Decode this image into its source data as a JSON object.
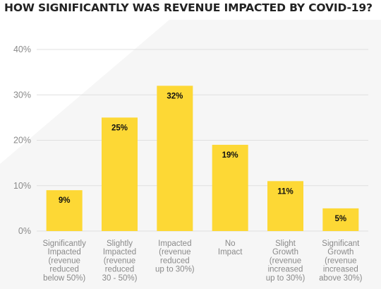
{
  "chart_data": {
    "type": "bar",
    "title": "HOW SIGNIFICANTLY WAS REVENUE IMPACTED BY COVID-19?",
    "categories": [
      [
        "Significantly",
        "Impacted",
        "(revenue",
        "reduced",
        "below 50%)"
      ],
      [
        "Slightly",
        "Impacted",
        "(revenue",
        "reduced",
        "30 - 50%)"
      ],
      [
        "Impacted",
        "(revenue",
        "reduced",
        "up to 30%)"
      ],
      [
        "No",
        "Impact"
      ],
      [
        "Slight",
        "Growth",
        "(revenue",
        "increased",
        "up to 30%)"
      ],
      [
        "Significant",
        "Growth",
        "(revenue",
        "increased",
        "above 30%)"
      ]
    ],
    "values": [
      9,
      25,
      32,
      19,
      11,
      5
    ],
    "data_labels": [
      "9%",
      "25%",
      "32%",
      "19%",
      "11%",
      "5%"
    ],
    "yticks": [
      0,
      10,
      20,
      30,
      40
    ],
    "ytick_labels": [
      "0%",
      "10%",
      "20%",
      "30%",
      "40%"
    ],
    "ylim": [
      0,
      40
    ],
    "grid": true,
    "xlabel": "",
    "ylabel": "",
    "colors": {
      "bar": "#FDD835",
      "grid": "#E0E0E0",
      "tick_text": "#8A8A8A",
      "title_text": "#222222",
      "label_text": "#111111",
      "background_band": "#F6F6F6"
    }
  }
}
